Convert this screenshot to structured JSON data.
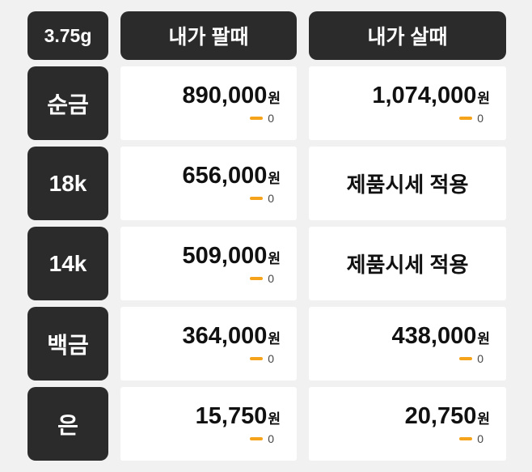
{
  "table": {
    "colors": {
      "dark": "#2b2b2b",
      "accent": "#f5a31a",
      "background": "#f1f1f1",
      "cell": "#ffffff"
    },
    "header": {
      "unit": "3.75g",
      "sell": "내가 팔때",
      "buy": "내가 살때"
    },
    "rows": [
      {
        "label": "순금",
        "sell": {
          "price": "890,000",
          "unit": "원",
          "delta": "0"
        },
        "buy": {
          "price": "1,074,000",
          "unit": "원",
          "delta": "0"
        }
      },
      {
        "label": "18k",
        "sell": {
          "price": "656,000",
          "unit": "원",
          "delta": "0"
        },
        "buy": {
          "text": "제품시세 적용"
        }
      },
      {
        "label": "14k",
        "sell": {
          "price": "509,000",
          "unit": "원",
          "delta": "0"
        },
        "buy": {
          "text": "제품시세 적용"
        }
      },
      {
        "label": "백금",
        "sell": {
          "price": "364,000",
          "unit": "원",
          "delta": "0"
        },
        "buy": {
          "price": "438,000",
          "unit": "원",
          "delta": "0"
        }
      },
      {
        "label": "은",
        "sell": {
          "price": "15,750",
          "unit": "원",
          "delta": "0"
        },
        "buy": {
          "price": "20,750",
          "unit": "원",
          "delta": "0"
        }
      }
    ]
  }
}
